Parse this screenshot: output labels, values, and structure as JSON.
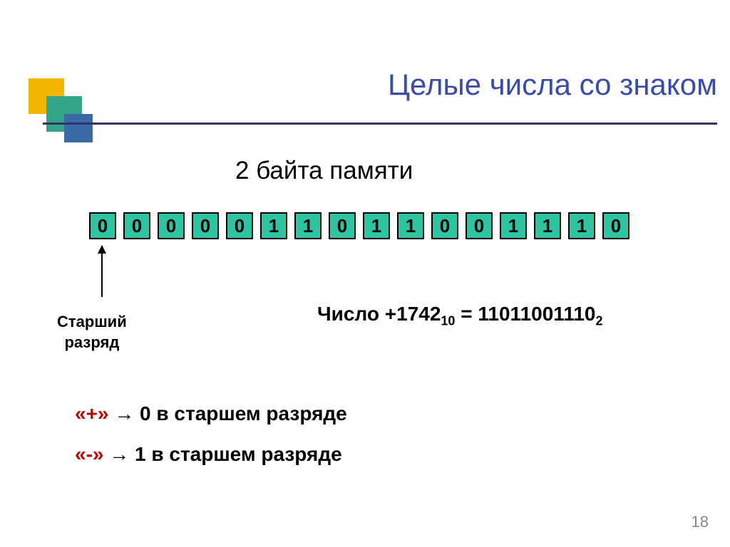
{
  "title": "Целые числа со знаком",
  "subtitle": "2 байта памяти",
  "bits": [
    "0",
    "0",
    "0",
    "0",
    "0",
    "1",
    "1",
    "0",
    "1",
    "1",
    "0",
    "0",
    "1",
    "1",
    "1",
    "0"
  ],
  "bit_colors": {
    "fill": "#2fc4a1",
    "border": "#000000",
    "text": "#000000"
  },
  "senior_label_line1": "Старший",
  "senior_label_line2": "разряд",
  "number": {
    "prefix": "Число +",
    "decimal": "1742",
    "dec_base": "10",
    "eq": " = ",
    "binary": "11011001110",
    "bin_base": "2"
  },
  "rules": {
    "plus_sign": "«+»",
    "plus_text": " → 0 в старшем разряде",
    "minus_sign": "«-»",
    "minus_text": " →  1 в старшем разряде"
  },
  "page": "18",
  "colors": {
    "title": "#3a4ba8",
    "line": "#333366",
    "sign": "#c00000",
    "logo_yellow": "#f4b700",
    "logo_teal": "#33a68a",
    "logo_blue": "#3a6ba8",
    "background": "#ffffff"
  }
}
